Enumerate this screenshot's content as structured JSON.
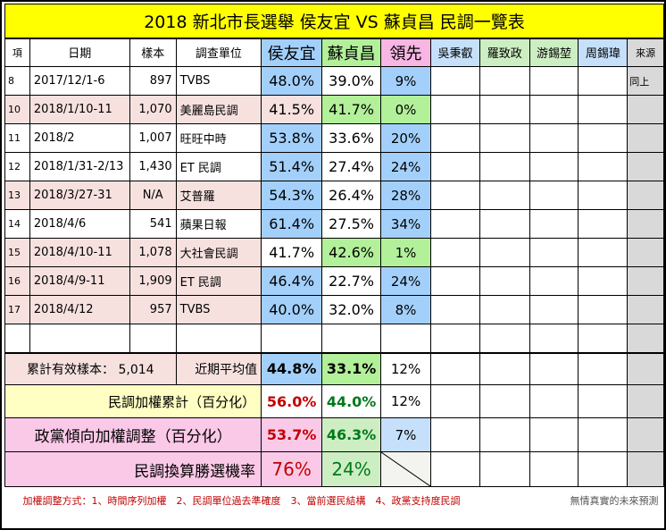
{
  "title": "2018  新北市長選舉   侯友宜 VS 蘇貞昌   民調一覽表",
  "headers": {
    "idx": "項",
    "date": "日期",
    "sample": "樣本",
    "unit": "調查單位",
    "hou": "侯友宜",
    "su": "蘇貞昌",
    "lead": "領先",
    "o1": "吳秉叡",
    "o2": "羅致政",
    "o3": "游錫堃",
    "o4": "周錫瑋",
    "src": "來源"
  },
  "rows": [
    {
      "idx": "8",
      "date": "2017/12/1-6",
      "sample": "897",
      "unit": "TVBS",
      "hou": "48.0%",
      "su": "39.0%",
      "lead": "9%",
      "src": "同上"
    },
    {
      "idx": "10",
      "date": "2018/1/10-11",
      "sample": "1,070",
      "unit": "美麗島民調",
      "hou": "41.5%",
      "su": "41.7%",
      "lead": "0%",
      "src": ""
    },
    {
      "idx": "11",
      "date": "2018/2",
      "sample": "1,007",
      "unit": "旺旺中時",
      "hou": "53.8%",
      "su": "33.6%",
      "lead": "20%",
      "src": ""
    },
    {
      "idx": "12",
      "date": "2018/1/31-2/13",
      "sample": "1,430",
      "unit": "ET 民調",
      "hou": "51.4%",
      "su": "27.4%",
      "lead": "24%",
      "src": ""
    },
    {
      "idx": "13",
      "date": "2018/3/27-31",
      "sample": "N/A",
      "unit": "艾普羅",
      "hou": "54.3%",
      "su": "26.4%",
      "lead": "28%",
      "src": ""
    },
    {
      "idx": "14",
      "date": "2018/4/6",
      "sample": "541",
      "unit": "蘋果日報",
      "hou": "61.4%",
      "su": "27.5%",
      "lead": "34%",
      "src": ""
    },
    {
      "idx": "15",
      "date": "2018/4/10-11",
      "sample": "1,078",
      "unit": "大社會民調",
      "hou": "41.7%",
      "su": "42.6%",
      "lead": "1%",
      "src": ""
    },
    {
      "idx": "16",
      "date": "2018/4/9-11",
      "sample": "1,909",
      "unit": "ET 民調",
      "hou": "46.4%",
      "su": "22.7%",
      "lead": "24%",
      "src": ""
    },
    {
      "idx": "17",
      "date": "2018/4/12",
      "sample": "957",
      "unit": "TVBS",
      "hou": "40.0%",
      "su": "32.0%",
      "lead": "8%",
      "src": ""
    }
  ],
  "summary": {
    "sample_label": "累計有效樣本：",
    "sample_value": "5,014",
    "recent_label": "近期平均值",
    "recent_hou": "44.8%",
    "recent_su": "33.1%",
    "recent_lead": "12%",
    "weighted_label": "民調加權累計（百分化）",
    "weighted_hou": "56.0%",
    "weighted_su": "44.0%",
    "weighted_lead": "12%",
    "party_label": "政黨傾向加權調整（百分化）",
    "party_hou": "53.7%",
    "party_su": "46.3%",
    "party_lead": "7%",
    "win_label": "民調換算勝選機率",
    "win_hou": "76%",
    "win_su": "24%"
  },
  "footer": {
    "method": "加權調整方式：1、時間序列加權　2、民調單位過去準確度　3、當前選民結構　4、政黨支持度民調",
    "disclaimer": "無情真實的未來預測"
  },
  "colors": {
    "title_bg": "#ffff00",
    "hou_blue": "#a3d0fb",
    "su_green": "#b3f09a",
    "lead_pink": "#f7b6e3",
    "red_text": "#c00000",
    "green_text": "#007a1a"
  }
}
